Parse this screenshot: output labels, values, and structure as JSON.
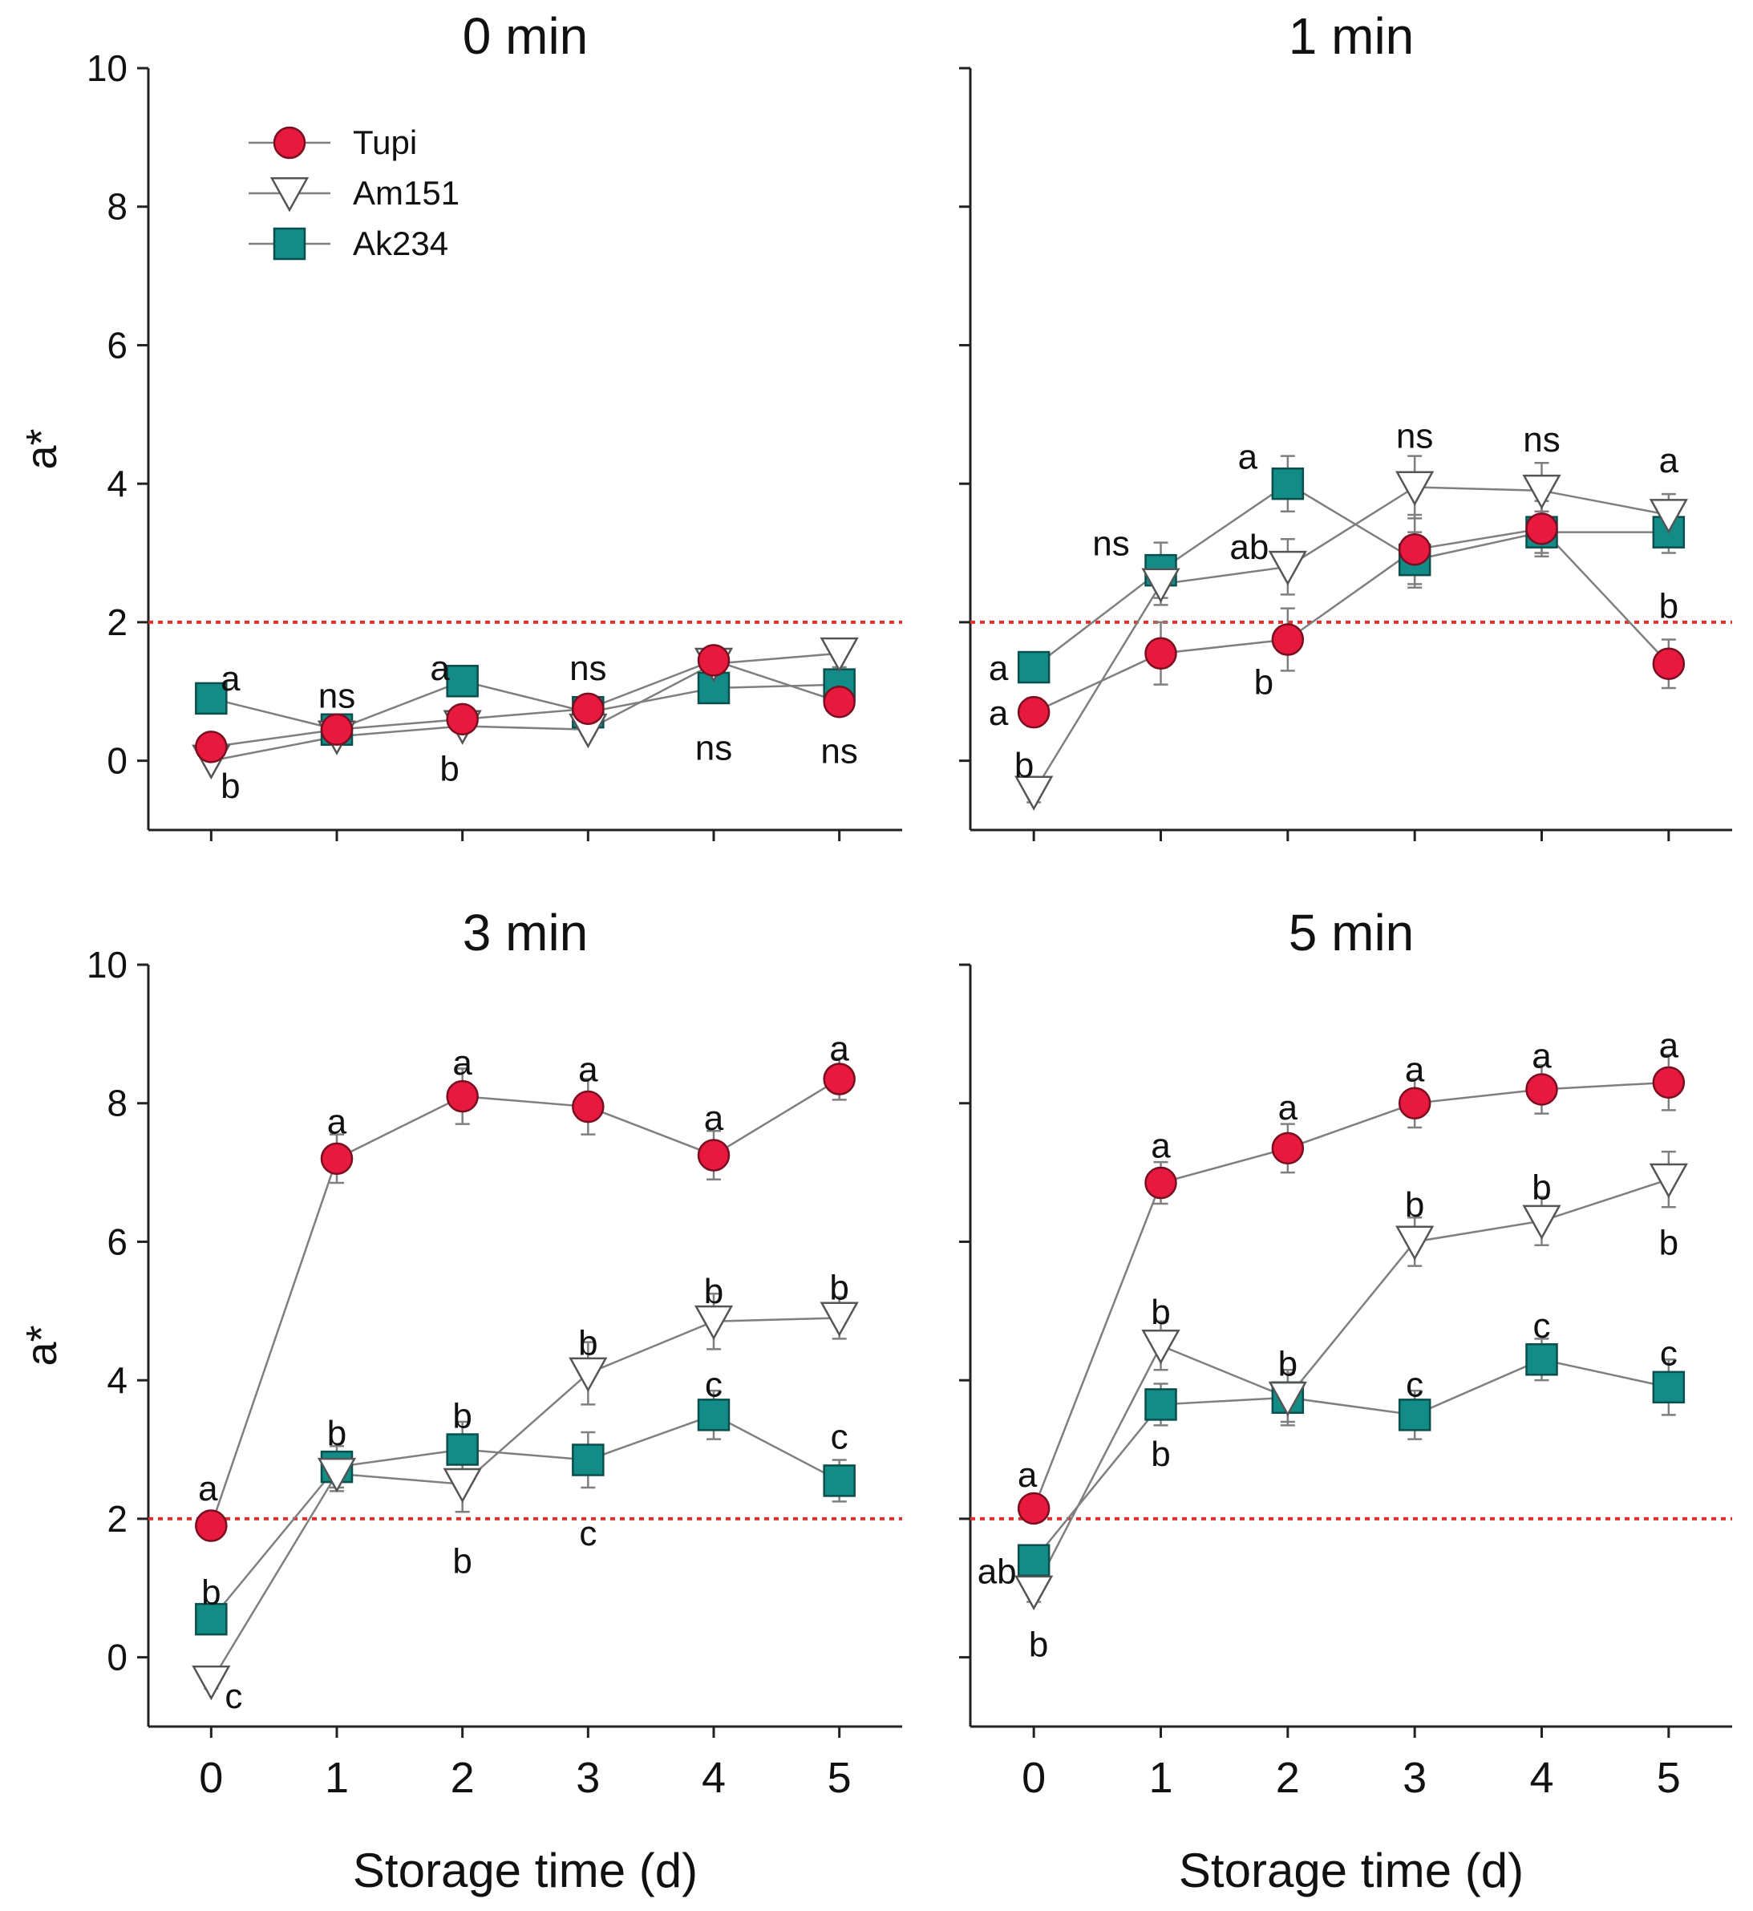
{
  "chart_data": {
    "type": "line",
    "layout": "2x2 grid of panels",
    "shared": {
      "xlabel": "Storage time (d)",
      "ylabel": "a*",
      "x": [
        0,
        1,
        2,
        3,
        4,
        5
      ],
      "x_ticks": [
        "0",
        "1",
        "2",
        "3",
        "4",
        "5"
      ],
      "xlim": [
        -0.5,
        5.5
      ],
      "ylim": [
        -1,
        10
      ],
      "y_ticks": [
        "0",
        "2",
        "4",
        "6",
        "8",
        "10"
      ],
      "reference_line": {
        "y": 2,
        "style": "dotted",
        "color": "#e03030"
      },
      "grid": false,
      "legend_position": "top-left of first panel",
      "series_styles": {
        "Tupi": {
          "marker": "circle",
          "fill": "#e8193f",
          "stroke": "#7a0e20"
        },
        "Am151": {
          "marker": "triangle-down",
          "fill": "#ffffff",
          "stroke": "#555555"
        },
        "Ak234": {
          "marker": "square",
          "fill": "#138b87",
          "stroke": "#0a4f4c"
        }
      },
      "line_color": "#7f7f7f",
      "errorbar_color": "#7f7f7f"
    },
    "legend": [
      "Tupi",
      "Am151",
      "Ak234"
    ],
    "panels": [
      {
        "title": "0 min",
        "series": [
          {
            "name": "Tupi",
            "values": [
              0.2,
              0.45,
              0.6,
              0.75,
              1.45,
              0.85
            ],
            "errors": [
              0.05,
              0.08,
              0.08,
              0.08,
              0.1,
              0.1
            ]
          },
          {
            "name": "Am151",
            "values": [
              0.0,
              0.35,
              0.5,
              0.45,
              1.4,
              1.55
            ],
            "errors": [
              0.05,
              0.08,
              0.08,
              0.08,
              0.1,
              0.2
            ]
          },
          {
            "name": "Ak234",
            "values": [
              0.9,
              0.45,
              1.15,
              0.7,
              1.05,
              1.1
            ],
            "errors": [
              0.05,
              0.08,
              0.08,
              0.08,
              0.1,
              0.12
            ]
          }
        ],
        "annotations": [
          {
            "x": 0,
            "y": 1.2,
            "text": "a",
            "dx": 24
          },
          {
            "x": 0,
            "y": -0.35,
            "text": "b",
            "dx": 24
          },
          {
            "x": 1,
            "y": 0.95,
            "text": "ns",
            "dx": 0
          },
          {
            "x": 2,
            "y": 1.35,
            "text": "a",
            "dx": -28
          },
          {
            "x": 2,
            "y": -0.1,
            "text": "b",
            "dx": -16
          },
          {
            "x": 3,
            "y": 1.35,
            "text": "ns",
            "dx": 0
          },
          {
            "x": 4,
            "y": 0.2,
            "text": "ns",
            "dx": 0
          },
          {
            "x": 5,
            "y": 0.15,
            "text": "ns",
            "dx": 0
          }
        ]
      },
      {
        "title": "1 min",
        "series": [
          {
            "name": "Tupi",
            "values": [
              0.7,
              1.55,
              1.75,
              3.05,
              3.35,
              1.4
            ],
            "errors": [
              0.2,
              0.45,
              0.45,
              0.5,
              0.4,
              0.35
            ]
          },
          {
            "name": "Am151",
            "values": [
              -0.45,
              2.55,
              2.8,
              3.95,
              3.9,
              3.55
            ],
            "errors": [
              0.15,
              0.3,
              0.4,
              0.45,
              0.4,
              0.3
            ]
          },
          {
            "name": "Ak234",
            "values": [
              1.35,
              2.75,
              4.0,
              2.9,
              3.3,
              3.3
            ],
            "errors": [
              0.1,
              0.4,
              0.4,
              0.4,
              0.3,
              0.3
            ]
          }
        ],
        "annotations": [
          {
            "x": 0,
            "y": 1.35,
            "text": "a",
            "dx": -44
          },
          {
            "x": 0,
            "y": 0.7,
            "text": "a",
            "dx": -44
          },
          {
            "x": 0,
            "y": -0.05,
            "text": "b",
            "dx": -12
          },
          {
            "x": 1,
            "y": 3.15,
            "text": "ns",
            "dx": -62
          },
          {
            "x": 2,
            "y": 4.4,
            "text": "a",
            "dx": -50
          },
          {
            "x": 2,
            "y": 3.1,
            "text": "ab",
            "dx": -48
          },
          {
            "x": 2,
            "y": 1.15,
            "text": "b",
            "dx": -30
          },
          {
            "x": 3,
            "y": 4.7,
            "text": "ns",
            "dx": 0
          },
          {
            "x": 4,
            "y": 4.65,
            "text": "ns",
            "dx": 0
          },
          {
            "x": 5,
            "y": 4.35,
            "text": "a",
            "dx": 0
          },
          {
            "x": 5,
            "y": 2.25,
            "text": "b",
            "dx": 0
          }
        ]
      },
      {
        "title": "3 min",
        "series": [
          {
            "name": "Tupi",
            "values": [
              1.9,
              7.2,
              8.1,
              7.95,
              7.25,
              8.35
            ],
            "errors": [
              0.1,
              0.35,
              0.4,
              0.4,
              0.35,
              0.3
            ]
          },
          {
            "name": "Am151",
            "values": [
              -0.35,
              2.65,
              2.5,
              4.1,
              4.85,
              4.9
            ],
            "errors": [
              0.1,
              0.25,
              0.4,
              0.45,
              0.4,
              0.3
            ]
          },
          {
            "name": "Ak234",
            "values": [
              0.55,
              2.75,
              3.0,
              2.85,
              3.5,
              2.55
            ],
            "errors": [
              0.1,
              0.3,
              0.4,
              0.4,
              0.35,
              0.3
            ]
          }
        ],
        "annotations": [
          {
            "x": 0,
            "y": 2.45,
            "text": "a",
            "dx": -4
          },
          {
            "x": 0,
            "y": 0.95,
            "text": "b",
            "dx": 0
          },
          {
            "x": 0,
            "y": -0.55,
            "text": "c",
            "dx": 28
          },
          {
            "x": 1,
            "y": 7.75,
            "text": "a",
            "dx": 0
          },
          {
            "x": 1,
            "y": 3.25,
            "text": "b",
            "dx": 0
          },
          {
            "x": 2,
            "y": 8.6,
            "text": "a",
            "dx": 0
          },
          {
            "x": 2,
            "y": 3.5,
            "text": "b",
            "dx": 0
          },
          {
            "x": 2,
            "y": 1.4,
            "text": "b",
            "dx": 0
          },
          {
            "x": 3,
            "y": 8.5,
            "text": "a",
            "dx": 0
          },
          {
            "x": 3,
            "y": 4.55,
            "text": "b",
            "dx": 0
          },
          {
            "x": 3,
            "y": 1.8,
            "text": "c",
            "dx": 0
          },
          {
            "x": 4,
            "y": 7.8,
            "text": "a",
            "dx": 0
          },
          {
            "x": 4,
            "y": 5.3,
            "text": "b",
            "dx": 0
          },
          {
            "x": 4,
            "y": 3.95,
            "text": "c",
            "dx": 0
          },
          {
            "x": 5,
            "y": 8.8,
            "text": "a",
            "dx": 0
          },
          {
            "x": 5,
            "y": 5.35,
            "text": "b",
            "dx": 0
          },
          {
            "x": 5,
            "y": 3.2,
            "text": "c",
            "dx": 0
          }
        ]
      },
      {
        "title": "5 min",
        "series": [
          {
            "name": "Tupi",
            "values": [
              2.15,
              6.85,
              7.35,
              8.0,
              8.2,
              8.3
            ],
            "errors": [
              0.1,
              0.3,
              0.35,
              0.35,
              0.35,
              0.4
            ]
          },
          {
            "name": "Am151",
            "values": [
              0.95,
              4.5,
              3.75,
              6.0,
              6.3,
              6.9
            ],
            "errors": [
              0.15,
              0.35,
              0.4,
              0.35,
              0.35,
              0.4
            ]
          },
          {
            "name": "Ak234",
            "values": [
              1.4,
              3.65,
              3.75,
              3.5,
              4.3,
              3.9
            ],
            "errors": [
              0.1,
              0.3,
              0.35,
              0.35,
              0.3,
              0.4
            ]
          }
        ],
        "annotations": [
          {
            "x": 0,
            "y": 2.65,
            "text": "a",
            "dx": -8
          },
          {
            "x": 0,
            "y": 1.25,
            "text": "ab",
            "dx": -46
          },
          {
            "x": 0,
            "y": 0.2,
            "text": "b",
            "dx": 6
          },
          {
            "x": 1,
            "y": 7.4,
            "text": "a",
            "dx": 0
          },
          {
            "x": 1,
            "y": 5.0,
            "text": "b",
            "dx": 0
          },
          {
            "x": 1,
            "y": 2.95,
            "text": "b",
            "dx": 0
          },
          {
            "x": 2,
            "y": 7.95,
            "text": "a",
            "dx": 0
          },
          {
            "x": 2,
            "y": 4.25,
            "text": "b",
            "dx": 0
          },
          {
            "x": 3,
            "y": 8.5,
            "text": "a",
            "dx": 0
          },
          {
            "x": 3,
            "y": 6.55,
            "text": "b",
            "dx": 0
          },
          {
            "x": 3,
            "y": 3.95,
            "text": "c",
            "dx": 0
          },
          {
            "x": 4,
            "y": 8.7,
            "text": "a",
            "dx": 0
          },
          {
            "x": 4,
            "y": 6.8,
            "text": "b",
            "dx": 0
          },
          {
            "x": 4,
            "y": 4.8,
            "text": "c",
            "dx": 0
          },
          {
            "x": 5,
            "y": 8.85,
            "text": "a",
            "dx": 0
          },
          {
            "x": 5,
            "y": 6.0,
            "text": "b",
            "dx": 0
          },
          {
            "x": 5,
            "y": 4.4,
            "text": "c",
            "dx": 0
          }
        ]
      }
    ]
  }
}
